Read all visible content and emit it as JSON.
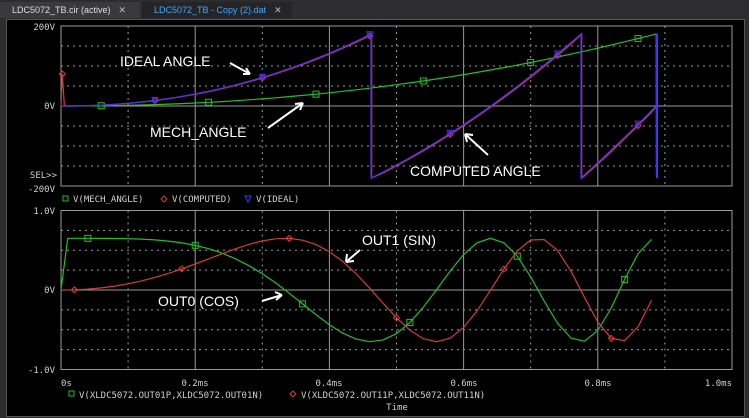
{
  "tabs": [
    {
      "label": "LDC5072_TB.cir (active)",
      "close": "✕",
      "active": false
    },
    {
      "label": "LDC5072_TB - Copy (2).dat",
      "close": "✕",
      "active": true
    }
  ],
  "colors": {
    "mech": "#22c022",
    "computed": "#d23c3c",
    "ideal": "#4a2cff",
    "grid": "#9a9a9a",
    "background": "#000000",
    "text": "#d0d0d0"
  },
  "annotations": {
    "ideal": "IDEAL ANGLE",
    "mech": "MECH_ANGLE",
    "computed": "COMPUTED  ANGLE",
    "out1": "OUT1 (SIN)",
    "out0": "OUT0 (COS)"
  },
  "sel_marker": "SEL>>",
  "chart_data": [
    {
      "type": "line",
      "ylim": [
        -200,
        200
      ],
      "xlim": [
        0,
        1.0
      ],
      "ytick_labels": [
        "200V",
        "0V",
        "-200V"
      ],
      "grid": true,
      "legend": "bottom",
      "series": [
        {
          "name": "V(MECH_ANGLE)",
          "marker": "square",
          "color": "#22c022",
          "points": [
            [
              0,
              0
            ],
            [
              0.02,
              0.06
            ],
            [
              0.04,
              0.25
            ],
            [
              0.06,
              0.6
            ],
            [
              0.08,
              1.1
            ],
            [
              0.1,
              1.7
            ],
            [
              0.12,
              2.6
            ],
            [
              0.14,
              3.5
            ],
            [
              0.16,
              4.7
            ],
            [
              0.18,
              6.0
            ],
            [
              0.2,
              7.6
            ],
            [
              0.22,
              9.3
            ],
            [
              0.24,
              11.1
            ],
            [
              0.26,
              13.2
            ],
            [
              0.28,
              15.5
            ],
            [
              0.3,
              17.9
            ],
            [
              0.32,
              20.5
            ],
            [
              0.34,
              23.4
            ],
            [
              0.36,
              26.4
            ],
            [
              0.38,
              29.6
            ],
            [
              0.4,
              33.0
            ],
            [
              0.42,
              36.7
            ],
            [
              0.44,
              40.5
            ],
            [
              0.46,
              44.5
            ],
            [
              0.48,
              48.7
            ],
            [
              0.5,
              53.2
            ],
            [
              0.52,
              57.8
            ],
            [
              0.54,
              62.6
            ],
            [
              0.56,
              67.7
            ],
            [
              0.58,
              72.9
            ],
            [
              0.6,
              78.4
            ],
            [
              0.62,
              84.0
            ],
            [
              0.64,
              89.9
            ],
            [
              0.66,
              96.0
            ],
            [
              0.68,
              102.3
            ],
            [
              0.7,
              108.8
            ],
            [
              0.72,
              115.6
            ],
            [
              0.74,
              122.5
            ],
            [
              0.76,
              129.7
            ],
            [
              0.78,
              137.0
            ],
            [
              0.8,
              144.6
            ],
            [
              0.82,
              152.4
            ],
            [
              0.84,
              160.4
            ],
            [
              0.86,
              168.7
            ],
            [
              0.88,
              177.1
            ],
            [
              0.887,
              180
            ],
            [
              0.8875,
              -170
            ]
          ]
        },
        {
          "name": "V(COMPUTED)",
          "marker": "diamond",
          "color": "#d23c3c",
          "points": [
            [
              0,
              0
            ],
            [
              0.002,
              80
            ],
            [
              0.005,
              0
            ],
            [
              0.02,
              0.1
            ],
            [
              0.04,
              0.8
            ],
            [
              0.06,
              2.0
            ],
            [
              0.08,
              3.9
            ],
            [
              0.1,
              6.4
            ],
            [
              0.12,
              9.6
            ],
            [
              0.14,
              13.4
            ],
            [
              0.16,
              18.0
            ],
            [
              0.18,
              23.2
            ],
            [
              0.2,
              29.2
            ],
            [
              0.22,
              35.8
            ],
            [
              0.24,
              43.2
            ],
            [
              0.26,
              51.4
            ],
            [
              0.28,
              60.4
            ],
            [
              0.3,
              70.0
            ],
            [
              0.32,
              80.4
            ],
            [
              0.34,
              91.7
            ],
            [
              0.36,
              103.7
            ],
            [
              0.38,
              116.5
            ],
            [
              0.4,
              130.0
            ],
            [
              0.42,
              144.4
            ],
            [
              0.44,
              159.6
            ],
            [
              0.46,
              175.6
            ],
            [
              0.463,
              180
            ],
            [
              0.463,
              -180
            ],
            [
              0.48,
              -167.5
            ],
            [
              0.5,
              -149.8
            ],
            [
              0.52,
              -131.3
            ],
            [
              0.54,
              -112.0
            ],
            [
              0.56,
              -92.0
            ],
            [
              0.58,
              -71.0
            ],
            [
              0.6,
              -49.2
            ],
            [
              0.62,
              -26.6
            ],
            [
              0.64,
              -3.2
            ],
            [
              0.66,
              21.0
            ],
            [
              0.68,
              46.2
            ],
            [
              0.7,
              72.2
            ],
            [
              0.72,
              99.0
            ],
            [
              0.74,
              126.6
            ],
            [
              0.76,
              155.2
            ],
            [
              0.776,
              180
            ],
            [
              0.776,
              -180
            ],
            [
              0.78,
              -175
            ],
            [
              0.8,
              -145
            ],
            [
              0.82,
              -113.8
            ],
            [
              0.84,
              -81.8
            ],
            [
              0.86,
              -49.0
            ],
            [
              0.88,
              -15.4
            ],
            [
              0.888,
              0
            ],
            [
              0.8885,
              180
            ],
            [
              0.8885,
              -180
            ]
          ]
        },
        {
          "name": "V(IDEAL)",
          "marker": "triangle",
          "color": "#4a2cff",
          "points": [
            [
              0,
              0
            ],
            [
              0.02,
              0.2
            ],
            [
              0.04,
              1.0
            ],
            [
              0.06,
              2.3
            ],
            [
              0.08,
              4.3
            ],
            [
              0.1,
              6.9
            ],
            [
              0.12,
              10.2
            ],
            [
              0.14,
              14.1
            ],
            [
              0.16,
              18.8
            ],
            [
              0.18,
              24.1
            ],
            [
              0.2,
              30.2
            ],
            [
              0.22,
              37.0
            ],
            [
              0.24,
              44.5
            ],
            [
              0.26,
              52.8
            ],
            [
              0.28,
              61.9
            ],
            [
              0.3,
              71.6
            ],
            [
              0.32,
              82.1
            ],
            [
              0.34,
              93.5
            ],
            [
              0.36,
              105.6
            ],
            [
              0.38,
              118.5
            ],
            [
              0.4,
              132.1
            ],
            [
              0.42,
              146.6
            ],
            [
              0.44,
              161.9
            ],
            [
              0.46,
              178.0
            ],
            [
              0.462,
              180
            ],
            [
              0.462,
              -180
            ],
            [
              0.48,
              -165.2
            ],
            [
              0.5,
              -147.4
            ],
            [
              0.52,
              -128.9
            ],
            [
              0.54,
              -109.5
            ],
            [
              0.56,
              -89.4
            ],
            [
              0.58,
              -68.4
            ],
            [
              0.6,
              -46.5
            ],
            [
              0.62,
              -23.9
            ],
            [
              0.64,
              -0.4
            ],
            [
              0.66,
              23.9
            ],
            [
              0.68,
              49.2
            ],
            [
              0.7,
              75.3
            ],
            [
              0.72,
              102.2
            ],
            [
              0.74,
              129.9
            ],
            [
              0.76,
              158.6
            ],
            [
              0.775,
              180
            ],
            [
              0.775,
              -180
            ],
            [
              0.78,
              -172
            ],
            [
              0.8,
              -141.7
            ],
            [
              0.82,
              -110.4
            ],
            [
              0.84,
              -78.3
            ],
            [
              0.86,
              -45.4
            ],
            [
              0.88,
              -11.7
            ],
            [
              0.887,
              0
            ],
            [
              0.8875,
              180
            ],
            [
              0.8875,
              -180
            ]
          ]
        }
      ]
    },
    {
      "type": "line",
      "ylim": [
        -1.0,
        1.0
      ],
      "xlim": [
        0,
        1.0
      ],
      "ytick_labels": [
        "1.0V",
        "0V",
        "-1.0V"
      ],
      "xtick_labels": [
        "0s",
        "0.2ms",
        "0.4ms",
        "0.6ms",
        "0.8ms",
        "1.0ms"
      ],
      "xticks": [
        0,
        0.2,
        0.4,
        0.6,
        0.8,
        1.0
      ],
      "xlabel": "Time",
      "grid": true,
      "legend": "bottom",
      "series": [
        {
          "name": "V(XLDC5072.OUT01P,XLDC5072.OUT01N)",
          "marker": "square",
          "color": "#22c022",
          "points": [
            [
              0,
              0
            ],
            [
              0.01,
              0.65
            ],
            [
              0.02,
              0.65
            ],
            [
              0.04,
              0.65
            ],
            [
              0.06,
              0.649
            ],
            [
              0.08,
              0.648
            ],
            [
              0.1,
              0.645
            ],
            [
              0.12,
              0.64
            ],
            [
              0.14,
              0.63
            ],
            [
              0.16,
              0.615
            ],
            [
              0.18,
              0.593
            ],
            [
              0.2,
              0.562
            ],
            [
              0.22,
              0.519
            ],
            [
              0.24,
              0.464
            ],
            [
              0.26,
              0.393
            ],
            [
              0.28,
              0.306
            ],
            [
              0.3,
              0.205
            ],
            [
              0.32,
              0.089
            ],
            [
              0.34,
              -0.04
            ],
            [
              0.36,
              -0.175
            ],
            [
              0.38,
              -0.31
            ],
            [
              0.4,
              -0.436
            ],
            [
              0.42,
              -0.543
            ],
            [
              0.44,
              -0.618
            ],
            [
              0.46,
              -0.65
            ],
            [
              0.48,
              -0.628
            ],
            [
              0.5,
              -0.548
            ],
            [
              0.52,
              -0.408
            ],
            [
              0.54,
              -0.217
            ],
            [
              0.56,
              0.007
            ],
            [
              0.58,
              0.239
            ],
            [
              0.6,
              0.447
            ],
            [
              0.62,
              0.594
            ],
            [
              0.64,
              0.65
            ],
            [
              0.66,
              0.594
            ],
            [
              0.68,
              0.425
            ],
            [
              0.7,
              0.165
            ],
            [
              0.72,
              -0.137
            ],
            [
              0.74,
              -0.418
            ],
            [
              0.76,
              -0.605
            ],
            [
              0.78,
              -0.644
            ],
            [
              0.8,
              -0.51
            ],
            [
              0.82,
              -0.227
            ],
            [
              0.84,
              0.133
            ],
            [
              0.86,
              0.457
            ],
            [
              0.88,
              0.636
            ]
          ]
        },
        {
          "name": "V(XLDC5072.OUT11P,XLDC5072.OUT11N)",
          "marker": "diamond",
          "color": "#d23c3c",
          "points": [
            [
              0,
              0
            ],
            [
              0.02,
              0.002
            ],
            [
              0.04,
              0.011
            ],
            [
              0.06,
              0.026
            ],
            [
              0.08,
              0.049
            ],
            [
              0.1,
              0.078
            ],
            [
              0.12,
              0.115
            ],
            [
              0.14,
              0.158
            ],
            [
              0.16,
              0.209
            ],
            [
              0.18,
              0.265
            ],
            [
              0.2,
              0.327
            ],
            [
              0.22,
              0.391
            ],
            [
              0.24,
              0.455
            ],
            [
              0.26,
              0.518
            ],
            [
              0.28,
              0.574
            ],
            [
              0.3,
              0.617
            ],
            [
              0.32,
              0.644
            ],
            [
              0.34,
              0.649
            ],
            [
              0.36,
              0.626
            ],
            [
              0.38,
              0.571
            ],
            [
              0.4,
              0.482
            ],
            [
              0.42,
              0.358
            ],
            [
              0.44,
              0.202
            ],
            [
              0.46,
              0.023
            ],
            [
              0.48,
              -0.166
            ],
            [
              0.5,
              -0.35
            ],
            [
              0.52,
              -0.506
            ],
            [
              0.54,
              -0.613
            ],
            [
              0.56,
              -0.65
            ],
            [
              0.58,
              -0.605
            ],
            [
              0.6,
              -0.472
            ],
            [
              0.62,
              -0.263
            ],
            [
              0.64,
              -0.004
            ],
            [
              0.66,
              0.263
            ],
            [
              0.68,
              0.492
            ],
            [
              0.7,
              0.629
            ],
            [
              0.72,
              0.635
            ],
            [
              0.74,
              0.498
            ],
            [
              0.76,
              0.237
            ],
            [
              0.78,
              -0.09
            ],
            [
              0.8,
              -0.403
            ],
            [
              0.82,
              -0.609
            ],
            [
              0.84,
              -0.636
            ],
            [
              0.86,
              -0.462
            ],
            [
              0.88,
              -0.131
            ]
          ]
        }
      ]
    }
  ]
}
